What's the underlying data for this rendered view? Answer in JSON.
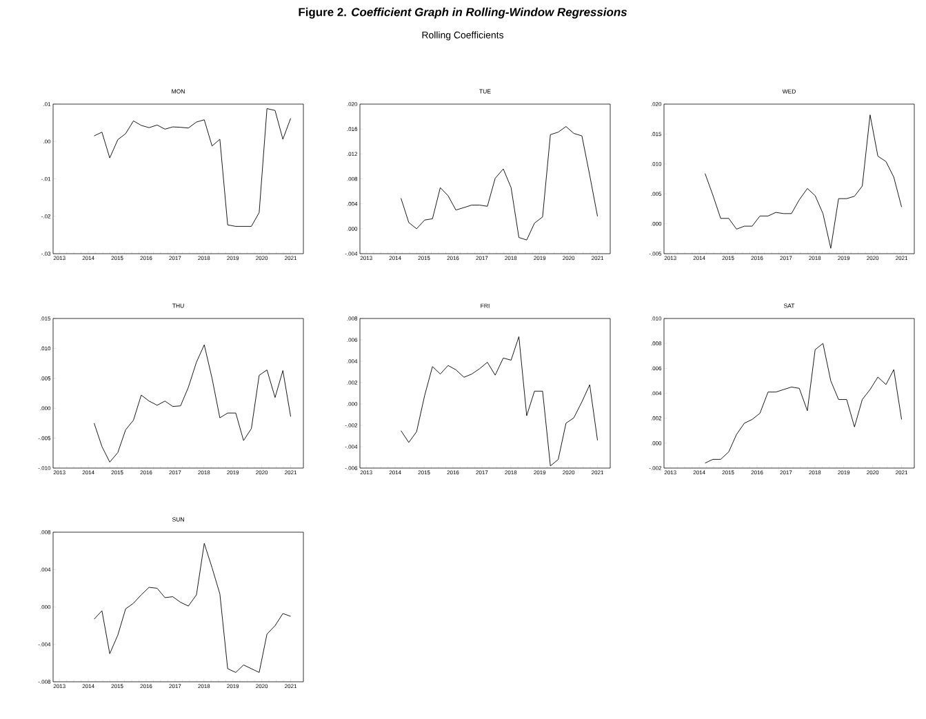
{
  "chart_data": [
    {
      "type": "line",
      "title": "MON",
      "annotations": [
        "Figure 2. *Coefficient Graph in Rolling-Window Regressions*",
        "Rolling Coefficients"
      ],
      "color": "#000000",
      "xlim": [
        2012.78,
        2021.44
      ],
      "xticks": [
        2013,
        2014,
        2015,
        2016,
        2017,
        2018,
        2019,
        2020,
        2021
      ],
      "ylim": [
        -0.03,
        0.01
      ],
      "yticks": [
        {
          "value": -0.03,
          "label": "-.03"
        },
        {
          "value": -0.02,
          "label": "-.02"
        },
        {
          "value": -0.01,
          "label": "-.01"
        },
        {
          "value": 0,
          "label": ".00"
        },
        {
          "value": 0.01,
          "label": ".01"
        }
      ],
      "x": [
        2014.2,
        2014.47,
        2014.74,
        2015.02,
        2015.29,
        2015.56,
        2015.83,
        2016.1,
        2016.38,
        2016.65,
        2016.92,
        2017.19,
        2017.46,
        2017.74,
        2018.01,
        2018.28,
        2018.55,
        2018.82,
        2019.1,
        2019.37,
        2019.64,
        2019.91,
        2020.18,
        2020.46,
        2020.73,
        2021.0
      ],
      "values": [
        0.0015,
        0.0025,
        -0.0044,
        0.0005,
        0.0021,
        0.0055,
        0.0043,
        0.0037,
        0.0044,
        0.0033,
        0.0039,
        0.0038,
        0.0036,
        0.0052,
        0.0058,
        -0.0012,
        0.0006,
        -0.0223,
        -0.0227,
        -0.0227,
        -0.0227,
        -0.019,
        0.0088,
        0.0083,
        0.0006,
        0.0062
      ]
    },
    {
      "type": "line",
      "title": "TUE",
      "color": "#000000",
      "xlim": [
        2012.78,
        2021.44
      ],
      "xticks": [
        2013,
        2014,
        2015,
        2016,
        2017,
        2018,
        2019,
        2020,
        2021
      ],
      "ylim": [
        -0.004,
        0.02
      ],
      "yticks": [
        {
          "value": -0.004,
          "label": "-.004"
        },
        {
          "value": 0,
          "label": ".000"
        },
        {
          "value": 0.004,
          "label": ".004"
        },
        {
          "value": 0.008,
          "label": ".008"
        },
        {
          "value": 0.012,
          "label": ".012"
        },
        {
          "value": 0.016,
          "label": ".016"
        },
        {
          "value": 0.02,
          "label": ".020"
        }
      ],
      "x": [
        2014.2,
        2014.47,
        2014.74,
        2015.02,
        2015.29,
        2015.56,
        2015.83,
        2016.1,
        2016.38,
        2016.65,
        2016.92,
        2017.19,
        2017.46,
        2017.74,
        2018.01,
        2018.28,
        2018.55,
        2018.82,
        2019.1,
        2019.37,
        2019.64,
        2019.91,
        2020.18,
        2020.46,
        2020.73,
        2021.0
      ],
      "values": [
        0.0049,
        0.001,
        0.0,
        0.0014,
        0.0016,
        0.0066,
        0.0053,
        0.003,
        0.0034,
        0.0038,
        0.0038,
        0.0036,
        0.0081,
        0.0096,
        0.0066,
        -0.0014,
        -0.0018,
        0.0009,
        0.0019,
        0.0151,
        0.0155,
        0.0164,
        0.0153,
        0.0149,
        0.0086,
        0.002
      ]
    },
    {
      "type": "line",
      "title": "WED",
      "color": "#000000",
      "xlim": [
        2012.78,
        2021.44
      ],
      "xticks": [
        2013,
        2014,
        2015,
        2016,
        2017,
        2018,
        2019,
        2020,
        2021
      ],
      "ylim": [
        -0.005,
        0.02
      ],
      "yticks": [
        {
          "value": -0.005,
          "label": "-.005"
        },
        {
          "value": 0,
          "label": ".000"
        },
        {
          "value": 0.005,
          "label": ".005"
        },
        {
          "value": 0.01,
          "label": ".010"
        },
        {
          "value": 0.015,
          "label": ".015"
        },
        {
          "value": 0.02,
          "label": ".020"
        }
      ],
      "x": [
        2014.2,
        2014.47,
        2014.74,
        2015.02,
        2015.29,
        2015.56,
        2015.83,
        2016.1,
        2016.38,
        2016.65,
        2016.92,
        2017.19,
        2017.46,
        2017.74,
        2018.01,
        2018.28,
        2018.55,
        2018.82,
        2019.1,
        2019.37,
        2019.64,
        2019.91,
        2020.18,
        2020.46,
        2020.73,
        2021.0
      ],
      "values": [
        0.0084,
        0.0048,
        0.0009,
        0.0009,
        -0.0009,
        -0.0004,
        -0.0004,
        0.0013,
        0.0013,
        0.0019,
        0.0017,
        0.0017,
        0.004,
        0.0059,
        0.0047,
        0.0017,
        -0.0041,
        0.0042,
        0.0042,
        0.0046,
        0.0063,
        0.0182,
        0.0113,
        0.0104,
        0.0078,
        0.0028
      ]
    },
    {
      "type": "line",
      "title": "THU",
      "color": "#000000",
      "xlim": [
        2012.78,
        2021.44
      ],
      "xticks": [
        2013,
        2014,
        2015,
        2016,
        2017,
        2018,
        2019,
        2020,
        2021
      ],
      "ylim": [
        -0.01,
        0.015
      ],
      "yticks": [
        {
          "value": -0.01,
          "label": "-.010"
        },
        {
          "value": -0.005,
          "label": "-.005"
        },
        {
          "value": 0,
          "label": ".000"
        },
        {
          "value": 0.005,
          "label": ".005"
        },
        {
          "value": 0.01,
          "label": ".010"
        },
        {
          "value": 0.015,
          "label": ".015"
        }
      ],
      "x": [
        2014.2,
        2014.47,
        2014.74,
        2015.02,
        2015.29,
        2015.56,
        2015.83,
        2016.1,
        2016.38,
        2016.65,
        2016.92,
        2017.19,
        2017.46,
        2017.74,
        2018.01,
        2018.28,
        2018.55,
        2018.82,
        2019.1,
        2019.37,
        2019.64,
        2019.91,
        2020.18,
        2020.46,
        2020.73,
        2021.0
      ],
      "values": [
        -0.0025,
        -0.0064,
        -0.009,
        -0.0074,
        -0.0036,
        -0.002,
        0.0022,
        0.0012,
        0.0005,
        0.0012,
        0.0003,
        0.0004,
        0.0035,
        0.0077,
        0.0106,
        0.005,
        -0.0016,
        -0.0008,
        -0.0008,
        -0.0054,
        -0.0034,
        0.0055,
        0.0064,
        0.0018,
        0.0063,
        -0.0014
      ]
    },
    {
      "type": "line",
      "title": "FRI",
      "color": "#000000",
      "xlim": [
        2012.78,
        2021.44
      ],
      "xticks": [
        2013,
        2014,
        2015,
        2016,
        2017,
        2018,
        2019,
        2020,
        2021
      ],
      "ylim": [
        -0.006,
        0.008
      ],
      "yticks": [
        {
          "value": -0.006,
          "label": "-.006"
        },
        {
          "value": -0.004,
          "label": "-.004"
        },
        {
          "value": -0.002,
          "label": "-.002"
        },
        {
          "value": 0,
          "label": ".000"
        },
        {
          "value": 0.002,
          "label": ".002"
        },
        {
          "value": 0.004,
          "label": ".004"
        },
        {
          "value": 0.006,
          "label": ".006"
        },
        {
          "value": 0.008,
          "label": ".008"
        }
      ],
      "x": [
        2014.2,
        2014.47,
        2014.74,
        2015.02,
        2015.29,
        2015.56,
        2015.83,
        2016.1,
        2016.38,
        2016.65,
        2016.92,
        2017.19,
        2017.46,
        2017.74,
        2018.01,
        2018.28,
        2018.55,
        2018.82,
        2019.1,
        2019.37,
        2019.64,
        2019.91,
        2020.18,
        2020.46,
        2020.73,
        2021.0
      ],
      "values": [
        -0.0025,
        -0.0036,
        -0.0026,
        0.0008,
        0.0035,
        0.0028,
        0.0036,
        0.0032,
        0.0025,
        0.0028,
        0.0033,
        0.0039,
        0.0027,
        0.0043,
        0.0041,
        0.0063,
        -0.0011,
        0.0012,
        0.0012,
        -0.0058,
        -0.0052,
        -0.0018,
        -0.0013,
        0.0002,
        0.0018,
        -0.0034
      ]
    },
    {
      "type": "line",
      "title": "SAT",
      "color": "#000000",
      "xlim": [
        2012.78,
        2021.44
      ],
      "xticks": [
        2013,
        2014,
        2015,
        2016,
        2017,
        2018,
        2019,
        2020,
        2021
      ],
      "ylim": [
        -0.002,
        0.01
      ],
      "yticks": [
        {
          "value": -0.002,
          "label": "-.002"
        },
        {
          "value": 0,
          "label": ".000"
        },
        {
          "value": 0.002,
          "label": ".002"
        },
        {
          "value": 0.004,
          "label": ".004"
        },
        {
          "value": 0.006,
          "label": ".006"
        },
        {
          "value": 0.008,
          "label": ".008"
        },
        {
          "value": 0.01,
          "label": ".010"
        }
      ],
      "x": [
        2014.2,
        2014.47,
        2014.74,
        2015.02,
        2015.29,
        2015.56,
        2015.83,
        2016.1,
        2016.38,
        2016.65,
        2016.92,
        2017.19,
        2017.46,
        2017.74,
        2018.01,
        2018.28,
        2018.55,
        2018.82,
        2019.1,
        2019.37,
        2019.64,
        2019.91,
        2020.18,
        2020.46,
        2020.73,
        2021.0
      ],
      "values": [
        -0.0016,
        -0.0013,
        -0.0013,
        -0.0007,
        0.0007,
        0.0016,
        0.0019,
        0.0024,
        0.0041,
        0.0041,
        0.0043,
        0.0045,
        0.0044,
        0.0026,
        0.0075,
        0.008,
        0.005,
        0.0035,
        0.0035,
        0.0013,
        0.0035,
        0.0043,
        0.0053,
        0.0047,
        0.0059,
        0.0019
      ]
    },
    {
      "type": "line",
      "title": "SUN",
      "color": "#000000",
      "xlim": [
        2012.78,
        2021.44
      ],
      "xticks": [
        2013,
        2014,
        2015,
        2016,
        2017,
        2018,
        2019,
        2020,
        2021
      ],
      "ylim": [
        -0.008,
        0.008
      ],
      "yticks": [
        {
          "value": -0.008,
          "label": "-.008"
        },
        {
          "value": -0.004,
          "label": "-.004"
        },
        {
          "value": 0,
          "label": ".000"
        },
        {
          "value": 0.004,
          "label": ".004"
        },
        {
          "value": 0.008,
          "label": ".008"
        }
      ],
      "x": [
        2014.2,
        2014.47,
        2014.74,
        2015.02,
        2015.29,
        2015.56,
        2015.83,
        2016.1,
        2016.38,
        2016.65,
        2016.92,
        2017.19,
        2017.46,
        2017.74,
        2018.01,
        2018.28,
        2018.55,
        2018.82,
        2019.1,
        2019.37,
        2019.64,
        2019.91,
        2020.18,
        2020.46,
        2020.73,
        2021.0
      ],
      "values": [
        -0.0013,
        -0.0004,
        -0.005,
        -0.003,
        -0.0002,
        0.0004,
        0.0013,
        0.0021,
        0.002,
        0.001,
        0.0011,
        0.0005,
        0.0001,
        0.0013,
        0.0068,
        0.0042,
        0.0014,
        -0.0066,
        -0.007,
        -0.0062,
        -0.0066,
        -0.007,
        -0.0029,
        -0.002,
        -0.0007,
        -0.001
      ]
    }
  ]
}
